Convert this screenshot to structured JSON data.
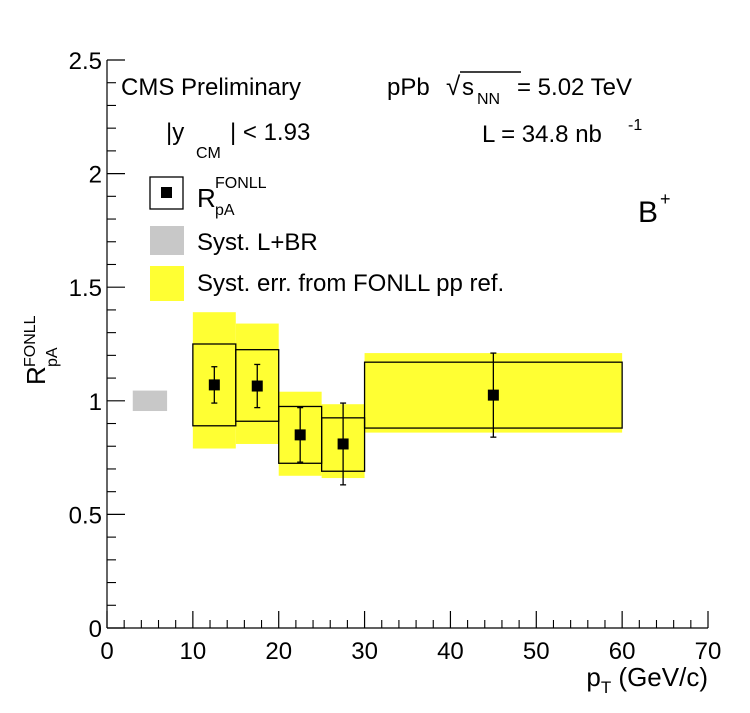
{
  "header": {
    "experiment": "CMS Preliminary",
    "system_prefix": "pPb ",
    "sqrt_symbol": "√",
    "s_letter": "s",
    "s_subscript": "NN",
    "energy_value": "= 5.02 TeV",
    "rapidity_prefix": "|y",
    "rapidity_subscript": "CM",
    "rapidity_suffix": "| < 1.93",
    "lumi_prefix": "L = 34.8 nb",
    "lumi_superscript": "-1",
    "particle": "B",
    "particle_superscript": "+"
  },
  "legend": {
    "entry_points": {
      "base": "R",
      "sup": "FONLL",
      "sub": "pA"
    },
    "entry_syst_lbr": "Syst. L+BR",
    "entry_syst_fonll": "Syst. err. from FONLL pp ref."
  },
  "colors": {
    "fonll_band": "#ffff33",
    "global_syst": "#c8c8c8",
    "marker": "#000000"
  },
  "chart_data": {
    "type": "scatter",
    "x_label": {
      "main": "p",
      "sub": "T",
      "rest": " (GeV/c)"
    },
    "y_label": {
      "main": "R",
      "sup": "FONLL",
      "sub": "pA"
    },
    "xlim": [
      0,
      70
    ],
    "ylim": [
      0,
      2.5
    ],
    "x_ticks": [
      0,
      10,
      20,
      30,
      40,
      50,
      60,
      70
    ],
    "y_ticks": [
      0,
      0.5,
      1,
      1.5,
      2,
      2.5
    ],
    "x_tick_labels": [
      "0",
      "10",
      "20",
      "30",
      "40",
      "50",
      "60",
      "70"
    ],
    "y_tick_labels": [
      "0",
      "0.5",
      "1",
      "1.5",
      "2",
      "2.5"
    ],
    "grid": false,
    "legend_position": "top-left",
    "points": [
      {
        "x": 12.5,
        "x_low": 10,
        "x_high": 15,
        "y": 1.07,
        "stat_err": 0.08,
        "syst_low": 0.89,
        "syst_high": 1.25,
        "fonll_low": 0.79,
        "fonll_high": 1.39
      },
      {
        "x": 17.5,
        "x_low": 15,
        "x_high": 20,
        "y": 1.065,
        "stat_err": 0.095,
        "syst_low": 0.91,
        "syst_high": 1.225,
        "fonll_low": 0.81,
        "fonll_high": 1.34
      },
      {
        "x": 22.5,
        "x_low": 20,
        "x_high": 25,
        "y": 0.85,
        "stat_err": 0.12,
        "syst_low": 0.725,
        "syst_high": 0.975,
        "fonll_low": 0.67,
        "fonll_high": 1.04
      },
      {
        "x": 27.5,
        "x_low": 25,
        "x_high": 30,
        "y": 0.81,
        "stat_err": 0.18,
        "syst_low": 0.69,
        "syst_high": 0.925,
        "fonll_low": 0.66,
        "fonll_high": 0.985
      },
      {
        "x": 45,
        "x_low": 30,
        "x_high": 60,
        "y": 1.025,
        "stat_err": 0.185,
        "syst_low": 0.88,
        "syst_high": 1.17,
        "fonll_low": 0.86,
        "fonll_high": 1.21
      }
    ],
    "global_uncertainty": {
      "x_low": 3,
      "x_high": 7,
      "y_low": 0.955,
      "y_high": 1.045
    }
  }
}
